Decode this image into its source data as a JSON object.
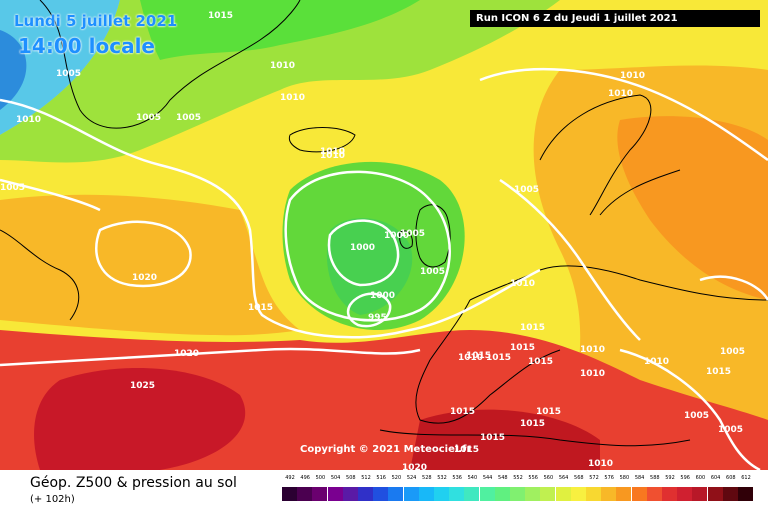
{
  "header": {
    "valid_date": "Lundi 5 juillet 2021",
    "valid_time": "14:00 locale",
    "run_info": "Run ICON 6 Z du Jeudi 1 juillet 2021"
  },
  "map": {
    "copyright": "Copyright © 2021 Meteociel.fr",
    "isobar_labels": [
      "1015",
      "1005",
      "1010",
      "1010",
      "1005",
      "1010",
      "1005",
      "1010",
      "1010",
      "1005",
      "1005",
      "1000",
      "1000",
      "1020",
      "1015",
      "1000",
      "995",
      "1005",
      "1010",
      "1015",
      "1015",
      "1020",
      "1025",
      "1010",
      "1015",
      "1015",
      "1015",
      "1010",
      "1010",
      "1015",
      "1015",
      "1015",
      "1015",
      "1015",
      "1010",
      "1010",
      "1005",
      "1010",
      "1005",
      "1005",
      "1005",
      "1015",
      "1010",
      "1020"
    ]
  },
  "footer": {
    "title": "Géop. Z500 & pression au sol",
    "subtitle": "(+ 102h)"
  },
  "legend": {
    "labels": [
      "492",
      "496",
      "500",
      "504",
      "508",
      "512",
      "516",
      "520",
      "524",
      "528",
      "532",
      "536",
      "540",
      "544",
      "548",
      "552",
      "556",
      "560",
      "564",
      "568",
      "572",
      "576",
      "580",
      "584",
      "588",
      "592",
      "596",
      "600",
      "604",
      "608",
      "612"
    ],
    "colors": [
      "#2b0032",
      "#4b0050",
      "#6a006f",
      "#7a0090",
      "#5a1aa6",
      "#3030c8",
      "#2050e0",
      "#1a7af0",
      "#1a9af8",
      "#18b8f8",
      "#20d0f0",
      "#30e0e0",
      "#40e8c0",
      "#50f0a0",
      "#60f080",
      "#80f070",
      "#a0f060",
      "#c0f050",
      "#e0f040",
      "#f8f040",
      "#f8d830",
      "#f8b828",
      "#f89820",
      "#f87820",
      "#f05030",
      "#e03030",
      "#d02030",
      "#b81828",
      "#901018",
      "#600810",
      "#300008"
    ]
  }
}
